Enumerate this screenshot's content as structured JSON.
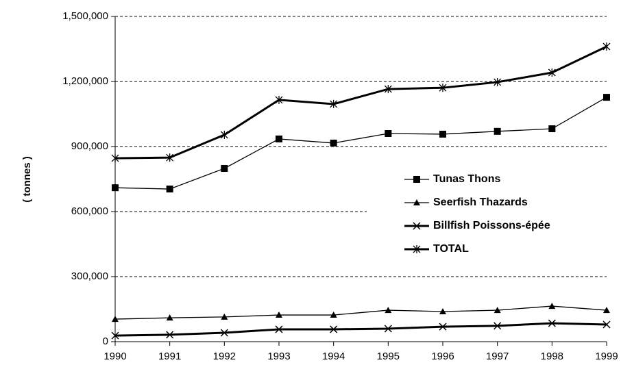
{
  "chart_data": {
    "type": "line",
    "y_label": "( tonnes )",
    "x": [
      1990,
      1991,
      1992,
      1993,
      1994,
      1995,
      1996,
      1997,
      1998,
      1999
    ],
    "xlim": [
      1990,
      1999
    ],
    "xticks": [
      1990,
      1991,
      1992,
      1993,
      1994,
      1995,
      1996,
      1997,
      1998,
      1999
    ],
    "ylim": [
      0,
      1500000
    ],
    "yticks": [
      0,
      {
        "value": 300000,
        "label": "300,000"
      },
      {
        "value": 600000,
        "label": "600,000"
      },
      {
        "value": 900000,
        "label": "900,000"
      },
      {
        "value": 1200000,
        "label": "1,200,000"
      },
      {
        "value": 1500000,
        "label": "1,500,000"
      }
    ],
    "grid": true,
    "legend": "right",
    "series": [
      {
        "name": "Tunas Thons",
        "color": "#000000",
        "marker": "square",
        "values": [
          710000,
          704000,
          799000,
          935000,
          916000,
          960000,
          957000,
          970000,
          982000,
          1127000
        ]
      },
      {
        "name": "Seerfish Thazards",
        "color": "#000000",
        "marker": "triangle",
        "values": [
          104000,
          110000,
          114000,
          123000,
          123000,
          145000,
          139000,
          145000,
          164000,
          145000
        ]
      },
      {
        "name": "Billfish Poissons-épée",
        "color": "#000000",
        "marker": "x",
        "values": [
          28000,
          32000,
          41000,
          57000,
          57000,
          60000,
          69000,
          73000,
          85000,
          79000
        ]
      },
      {
        "name": "TOTAL",
        "color": "#000000",
        "marker": "star",
        "values": [
          846000,
          849000,
          954000,
          1115000,
          1096000,
          1165000,
          1171000,
          1197000,
          1241000,
          1361000
        ]
      }
    ]
  }
}
